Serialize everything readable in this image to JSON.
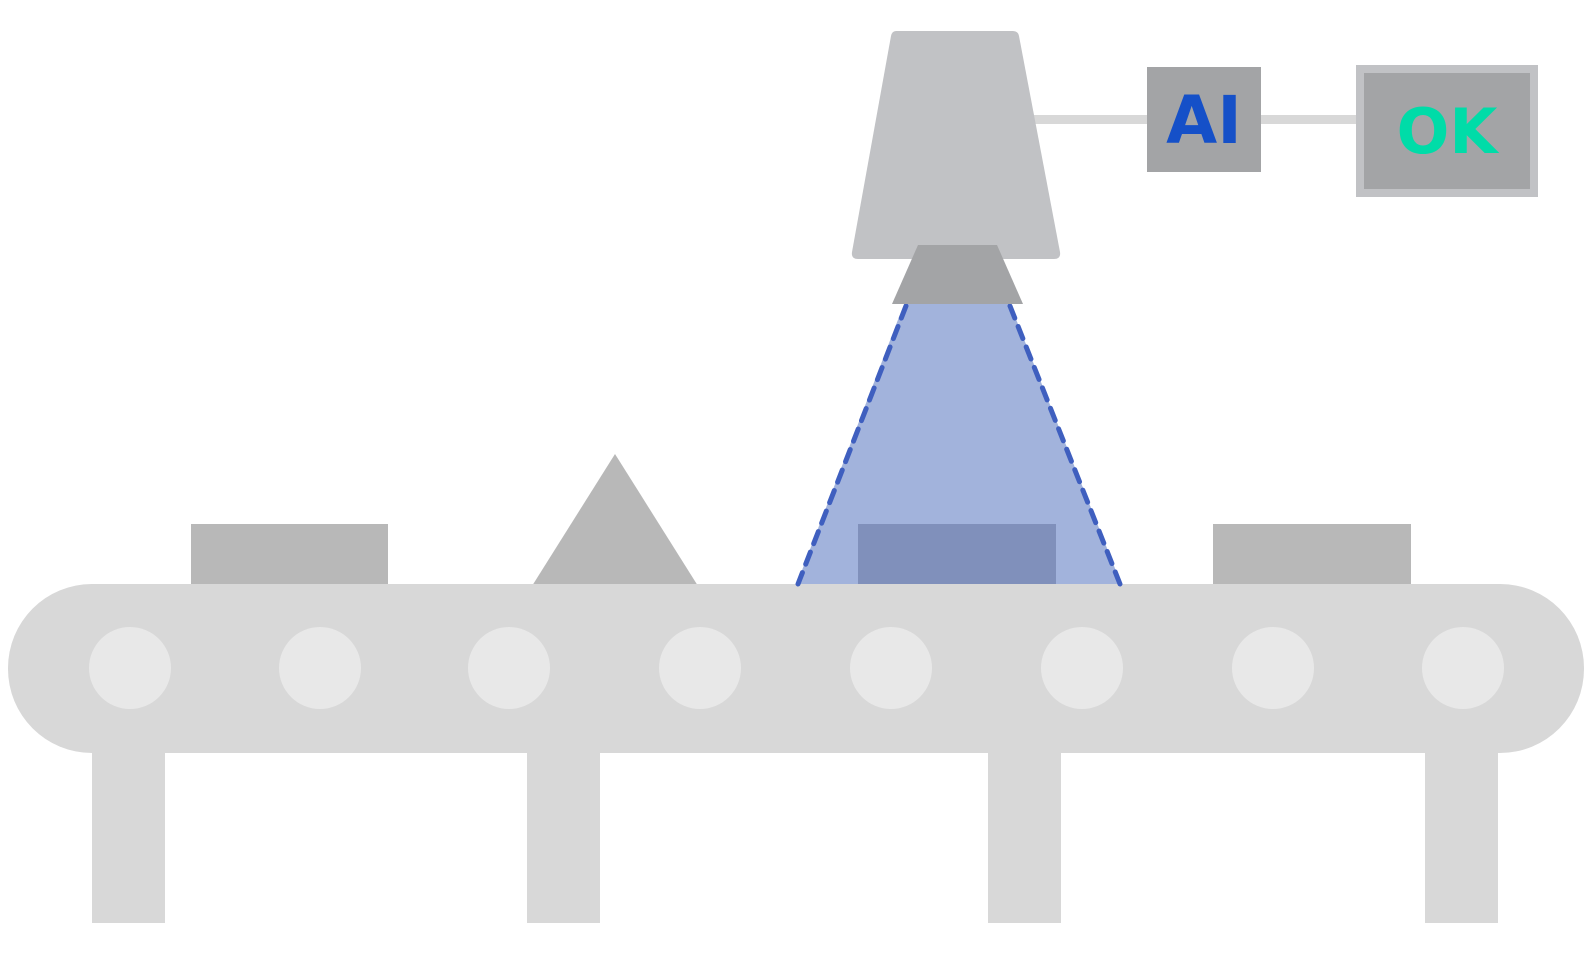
{
  "labels": {
    "ai_box": "AI",
    "result_box": "OK"
  },
  "colors": {
    "background": "#ffffff",
    "conveyor": "#d8d8d8",
    "roller": "#e8e8e8",
    "item": "#b8b8b8",
    "item_in_view": "#8090bb",
    "camera_body": "#c1c2c5",
    "camera_lens": "#a3a4a6",
    "field_of_view": "#a2b3dc",
    "field_of_view_edge": "#3f5fbf",
    "cable": "#d8d8d8",
    "ai_box_fill": "#a3a4a6",
    "ai_text": "#1550c8",
    "result_box_border": "#c1c2c5",
    "result_box_fill": "#a3a4a6",
    "ok_text": "#00dca8"
  },
  "icons": {
    "items": [
      "box",
      "triangle",
      "box",
      "box"
    ]
  }
}
